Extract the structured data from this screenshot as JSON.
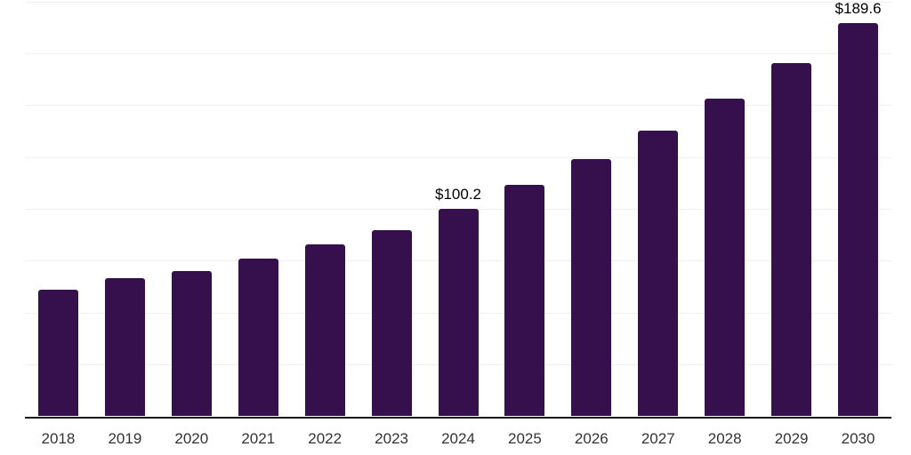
{
  "chart_data": {
    "type": "bar",
    "title": "",
    "xlabel": "",
    "ylabel": "",
    "categories": [
      "2018",
      "2019",
      "2020",
      "2021",
      "2022",
      "2023",
      "2024",
      "2025",
      "2026",
      "2027",
      "2028",
      "2029",
      "2030"
    ],
    "values": [
      61.0,
      66.7,
      70.0,
      75.9,
      82.8,
      89.7,
      100.2,
      111.5,
      123.9,
      137.8,
      153.0,
      170.3,
      189.6
    ],
    "ylim": [
      0,
      200
    ],
    "gridline_step": 25,
    "grid": true,
    "legend": false,
    "y_axis_tick_labels_visible": false,
    "annotations": [
      {
        "category": "2024",
        "text": "$100.2"
      },
      {
        "category": "2030",
        "text": "$189.6"
      }
    ],
    "colors": {
      "bar": "#35104D",
      "gridline": "#f0f0f0",
      "axis_line": "#1a1a1a",
      "x_tick_label": "#333333",
      "annotation": "#000000",
      "background": "#ffffff"
    }
  }
}
